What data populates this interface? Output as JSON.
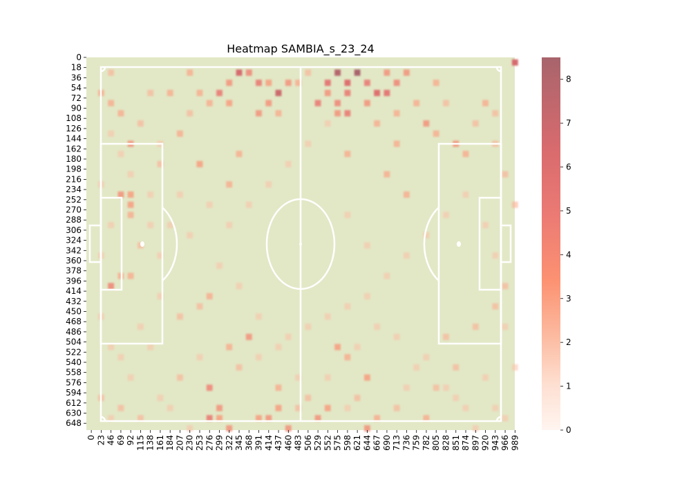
{
  "chart_data": {
    "type": "heatmap",
    "title": "Heatmap SAMBIA_s_23_24",
    "x_tick_labels": [
      "0",
      "23",
      "46",
      "69",
      "92",
      "115",
      "138",
      "161",
      "184",
      "207",
      "230",
      "253",
      "276",
      "299",
      "322",
      "345",
      "368",
      "391",
      "414",
      "437",
      "460",
      "483",
      "506",
      "529",
      "552",
      "575",
      "598",
      "621",
      "644",
      "667",
      "690",
      "713",
      "736",
      "759",
      "782",
      "805",
      "828",
      "851",
      "874",
      "897",
      "920",
      "943",
      "966",
      "989"
    ],
    "y_tick_labels": [
      "0",
      "18",
      "36",
      "54",
      "72",
      "90",
      "108",
      "126",
      "144",
      "162",
      "180",
      "198",
      "216",
      "234",
      "252",
      "270",
      "288",
      "306",
      "324",
      "342",
      "360",
      "378",
      "396",
      "414",
      "432",
      "450",
      "468",
      "486",
      "504",
      "522",
      "540",
      "558",
      "576",
      "594",
      "612",
      "630",
      "648"
    ],
    "xlim": [
      0,
      1000
    ],
    "ylim": [
      0,
      660
    ],
    "colorbar": {
      "min": 0,
      "max": 8.5,
      "ticks": [
        "0",
        "1",
        "2",
        "3",
        "4",
        "5",
        "6",
        "7",
        "8"
      ]
    },
    "colors": {
      "pitch": "#e2e8c6",
      "lines": "#ffffff",
      "low": "#fff5f0",
      "high": "#a8646c"
    },
    "cells": [
      [
        345,
        18,
        6.5
      ],
      [
        368,
        18,
        4.5
      ],
      [
        391,
        36,
        5
      ],
      [
        414,
        36,
        3.5
      ],
      [
        437,
        54,
        7
      ],
      [
        460,
        36,
        4
      ],
      [
        552,
        36,
        5.5
      ],
      [
        575,
        18,
        8
      ],
      [
        598,
        36,
        6
      ],
      [
        621,
        18,
        8.5
      ],
      [
        644,
        36,
        5
      ],
      [
        667,
        54,
        6
      ],
      [
        690,
        54,
        5.5
      ],
      [
        713,
        36,
        4.5
      ],
      [
        736,
        18,
        4
      ],
      [
        690,
        18,
        4
      ],
      [
        598,
        54,
        5
      ],
      [
        575,
        72,
        4.5
      ],
      [
        529,
        72,
        5
      ],
      [
        552,
        54,
        4
      ],
      [
        644,
        72,
        4
      ],
      [
        598,
        90,
        5
      ],
      [
        575,
        90,
        4
      ],
      [
        414,
        72,
        4
      ],
      [
        391,
        90,
        4
      ],
      [
        322,
        36,
        4
      ],
      [
        299,
        54,
        5
      ],
      [
        322,
        72,
        3.5
      ],
      [
        253,
        54,
        3
      ],
      [
        989,
        0,
        6.5
      ],
      [
        92,
        144,
        4
      ],
      [
        69,
        234,
        4
      ],
      [
        92,
        234,
        3.5
      ],
      [
        46,
        396,
        4.5
      ],
      [
        69,
        378,
        3
      ],
      [
        92,
        378,
        3
      ],
      [
        92,
        270,
        3
      ],
      [
        92,
        252,
        3.5
      ],
      [
        69,
        90,
        3
      ],
      [
        184,
        54,
        3
      ],
      [
        23,
        54,
        3
      ],
      [
        276,
        630,
        5
      ],
      [
        299,
        612,
        4
      ],
      [
        276,
        576,
        4.5
      ],
      [
        299,
        630,
        3.5
      ],
      [
        322,
        648,
        4
      ],
      [
        391,
        630,
        3.5
      ],
      [
        414,
        630,
        4
      ],
      [
        437,
        612,
        3.5
      ],
      [
        460,
        648,
        4
      ],
      [
        368,
        486,
        4
      ],
      [
        529,
        630,
        4
      ],
      [
        552,
        612,
        3.5
      ],
      [
        644,
        648,
        4
      ],
      [
        667,
        630,
        3
      ],
      [
        575,
        504,
        3.5
      ],
      [
        598,
        522,
        3
      ],
      [
        644,
        558,
        3.5
      ],
      [
        253,
        180,
        3.5
      ],
      [
        345,
        162,
        3
      ],
      [
        322,
        216,
        3
      ],
      [
        759,
        72,
        3
      ],
      [
        782,
        108,
        4
      ],
      [
        805,
        126,
        3
      ],
      [
        851,
        144,
        4
      ],
      [
        874,
        162,
        3
      ],
      [
        690,
        198,
        3
      ],
      [
        736,
        234,
        3
      ],
      [
        598,
        162,
        3
      ],
      [
        667,
        108,
        3
      ],
      [
        713,
        144,
        3
      ],
      [
        920,
        72,
        3
      ],
      [
        943,
        90,
        2.5
      ],
      [
        276,
        72,
        3
      ],
      [
        230,
        90,
        2.5
      ],
      [
        207,
        126,
        3
      ],
      [
        161,
        180,
        2.5
      ],
      [
        115,
        108,
        2.5
      ],
      [
        138,
        54,
        2.5
      ],
      [
        46,
        72,
        3
      ],
      [
        253,
        432,
        2.5
      ],
      [
        276,
        414,
        3
      ],
      [
        207,
        450,
        2.5
      ],
      [
        322,
        504,
        3
      ],
      [
        345,
        540,
        2.5
      ],
      [
        437,
        576,
        3
      ],
      [
        483,
        612,
        2.5
      ],
      [
        506,
        594,
        2.5
      ],
      [
        621,
        594,
        2.5
      ],
      [
        713,
        612,
        2.5
      ],
      [
        782,
        630,
        3
      ],
      [
        828,
        486,
        2.5
      ],
      [
        897,
        468,
        2.5
      ],
      [
        943,
        432,
        2.5
      ],
      [
        966,
        396,
        2.5
      ],
      [
        805,
        576,
        2.5
      ],
      [
        851,
        540,
        2.5
      ],
      [
        46,
        18,
        2.5
      ],
      [
        230,
        18,
        3
      ],
      [
        437,
        90,
        3
      ],
      [
        483,
        36,
        3
      ],
      [
        506,
        18,
        2.5
      ],
      [
        713,
        90,
        3
      ],
      [
        805,
        36,
        3
      ],
      [
        828,
        72,
        2.5
      ],
      [
        897,
        108,
        2.5
      ],
      [
        943,
        144,
        2.5
      ],
      [
        966,
        198,
        2.5
      ],
      [
        989,
        252,
        2.5
      ],
      [
        115,
        324,
        2.5
      ],
      [
        138,
        288,
        2
      ],
      [
        161,
        342,
        2
      ],
      [
        23,
        450,
        2
      ],
      [
        46,
        504,
        2
      ],
      [
        23,
        594,
        2.5
      ],
      [
        69,
        612,
        2.5
      ],
      [
        115,
        630,
        2.5
      ],
      [
        161,
        594,
        2
      ],
      [
        207,
        558,
        2.5
      ],
      [
        253,
        522,
        2
      ],
      [
        391,
        522,
        2
      ],
      [
        460,
        486,
        2
      ],
      [
        506,
        468,
        2
      ],
      [
        552,
        450,
        2
      ],
      [
        598,
        432,
        2
      ],
      [
        644,
        414,
        2
      ],
      [
        690,
        378,
        2
      ],
      [
        736,
        342,
        2
      ],
      [
        782,
        306,
        2
      ],
      [
        828,
        270,
        2
      ],
      [
        874,
        234,
        2
      ],
      [
        920,
        288,
        2
      ],
      [
        943,
        342,
        2
      ],
      [
        966,
        468,
        2
      ],
      [
        989,
        540,
        2
      ],
      [
        943,
        612,
        2
      ],
      [
        897,
        648,
        2
      ],
      [
        851,
        594,
        2
      ],
      [
        322,
        288,
        2
      ],
      [
        368,
        252,
        2
      ],
      [
        414,
        216,
        2
      ],
      [
        460,
        180,
        2
      ],
      [
        506,
        144,
        2
      ],
      [
        552,
        108,
        2
      ],
      [
        598,
        270,
        2
      ],
      [
        644,
        324,
        2
      ],
      [
        713,
        486,
        2
      ],
      [
        759,
        540,
        2
      ],
      [
        299,
        360,
        2
      ],
      [
        345,
        396,
        2
      ],
      [
        391,
        450,
        2
      ],
      [
        437,
        504,
        2
      ],
      [
        483,
        558,
        2
      ],
      [
        207,
        234,
        2
      ],
      [
        184,
        288,
        2
      ],
      [
        230,
        306,
        2
      ],
      [
        276,
        252,
        2
      ],
      [
        161,
        414,
        2
      ],
      [
        115,
        468,
        2
      ],
      [
        69,
        522,
        2
      ],
      [
        92,
        558,
        2
      ],
      [
        138,
        504,
        2
      ],
      [
        184,
        612,
        2
      ],
      [
        230,
        648,
        2
      ],
      [
        552,
        558,
        2
      ],
      [
        598,
        612,
        2
      ],
      [
        621,
        504,
        2
      ],
      [
        667,
        468,
        2
      ],
      [
        736,
        576,
        2
      ],
      [
        782,
        522,
        2
      ],
      [
        828,
        576,
        2
      ],
      [
        874,
        612,
        2
      ],
      [
        920,
        558,
        2
      ],
      [
        966,
        630,
        2
      ],
      [
        46,
        630,
        2
      ],
      [
        23,
        342,
        2
      ],
      [
        46,
        288,
        2
      ],
      [
        69,
        162,
        2
      ],
      [
        23,
        216,
        2
      ],
      [
        46,
        126,
        2
      ],
      [
        92,
        198,
        2
      ],
      [
        138,
        234,
        2
      ],
      [
        161,
        144,
        2
      ]
    ]
  }
}
